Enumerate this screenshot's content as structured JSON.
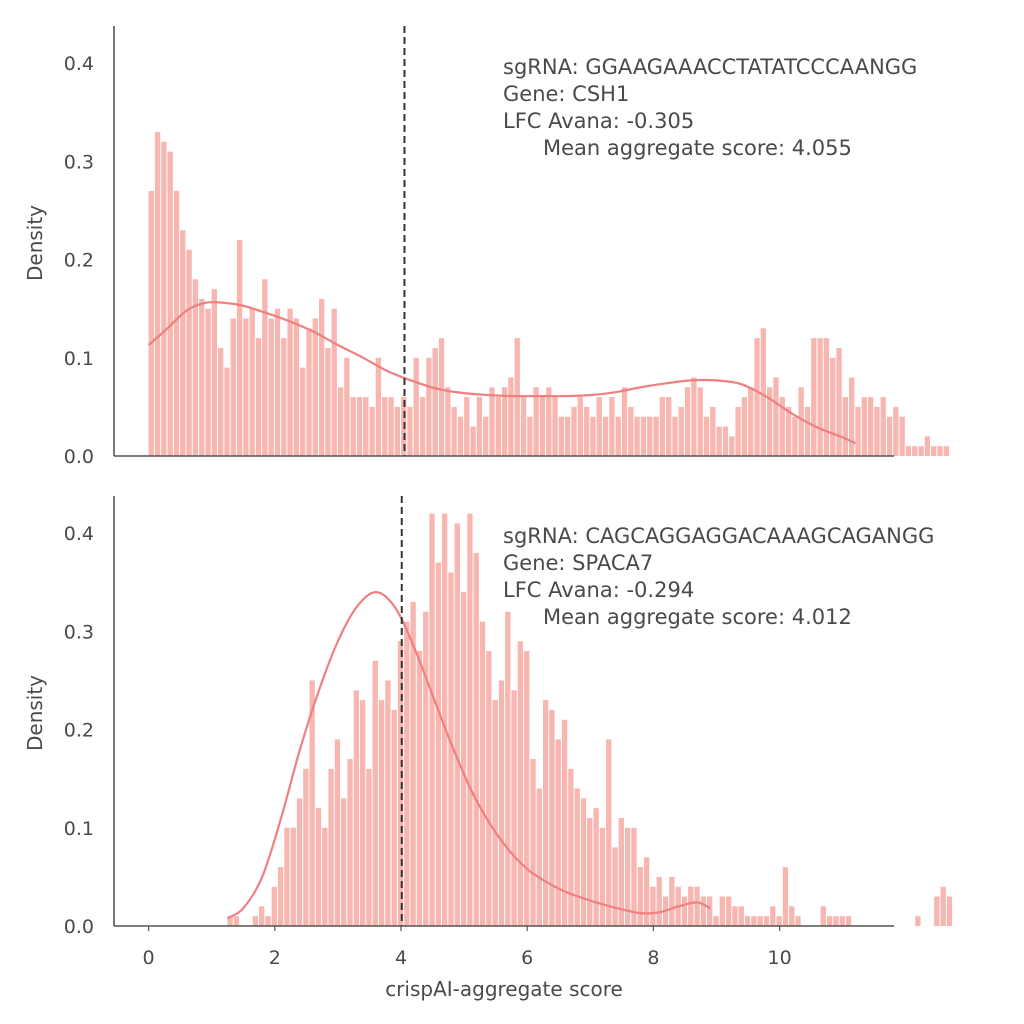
{
  "chart_data": [
    {
      "type": "histogram",
      "title": "",
      "xlabel": "",
      "ylabel": "Density",
      "xlim": [
        -0.5,
        11.8
      ],
      "ylim": [
        0,
        0.44
      ],
      "yticks": [
        "0.0",
        "0.1",
        "0.2",
        "0.3",
        "0.4"
      ],
      "xticks": [],
      "vline_x": 4.055,
      "annotation": {
        "sgrna": "sgRNA: GGAAGAAACCTATATCCCAANGG",
        "gene": "Gene: CSH1",
        "lfc": "LFC Avana: -0.305",
        "mean": "Mean aggregate score: 4.055"
      },
      "bins": {
        "start": 0.0,
        "width": 0.1,
        "values": [
          0.27,
          0.33,
          0.32,
          0.31,
          0.27,
          0.23,
          0.21,
          0.18,
          0.16,
          0.15,
          0.17,
          0.11,
          0.09,
          0.14,
          0.22,
          0.14,
          0.15,
          0.12,
          0.18,
          0.14,
          0.15,
          0.12,
          0.15,
          0.14,
          0.09,
          0.13,
          0.14,
          0.16,
          0.11,
          0.15,
          0.07,
          0.1,
          0.06,
          0.06,
          0.06,
          0.05,
          0.1,
          0.06,
          0.06,
          0.05,
          0.06,
          0.05,
          0.1,
          0.06,
          0.1,
          0.11,
          0.12,
          0.07,
          0.05,
          0.04,
          0.06,
          0.03,
          0.06,
          0.04,
          0.07,
          0.06,
          0.07,
          0.08,
          0.12,
          0.06,
          0.04,
          0.07,
          0.06,
          0.07,
          0.06,
          0.04,
          0.04,
          0.05,
          0.06,
          0.05,
          0.04,
          0.06,
          0.04,
          0.06,
          0.04,
          0.07,
          0.05,
          0.04,
          0.04,
          0.04,
          0.04,
          0.06,
          0.06,
          0.04,
          0.05,
          0.07,
          0.08,
          0.07,
          0.04,
          0.05,
          0.03,
          0.03,
          0.02,
          0.05,
          0.06,
          0.07,
          0.12,
          0.13,
          0.07,
          0.08,
          0.06,
          0.05,
          0.04,
          0.07,
          0.05,
          0.12,
          0.12,
          0.12,
          0.1,
          0.11,
          0.06,
          0.08,
          0.05,
          0.06,
          0.06,
          0.05,
          0.06,
          0.04,
          0.05,
          0.04,
          0.01,
          0.01,
          0.01,
          0.02,
          0.01,
          0.01,
          0.01
        ]
      },
      "kde": [
        [
          0.0,
          0.113
        ],
        [
          0.3,
          0.13
        ],
        [
          0.6,
          0.148
        ],
        [
          0.9,
          0.156
        ],
        [
          1.2,
          0.156
        ],
        [
          1.5,
          0.153
        ],
        [
          1.8,
          0.147
        ],
        [
          2.2,
          0.138
        ],
        [
          2.6,
          0.127
        ],
        [
          3.0,
          0.113
        ],
        [
          3.4,
          0.1
        ],
        [
          3.8,
          0.086
        ],
        [
          4.2,
          0.076
        ],
        [
          4.6,
          0.068
        ],
        [
          5.0,
          0.064
        ],
        [
          5.4,
          0.062
        ],
        [
          5.8,
          0.061
        ],
        [
          6.2,
          0.061
        ],
        [
          6.6,
          0.061
        ],
        [
          7.0,
          0.062
        ],
        [
          7.4,
          0.065
        ],
        [
          7.8,
          0.07
        ],
        [
          8.2,
          0.074
        ],
        [
          8.6,
          0.077
        ],
        [
          9.0,
          0.077
        ],
        [
          9.4,
          0.073
        ],
        [
          9.8,
          0.06
        ],
        [
          10.2,
          0.043
        ],
        [
          10.6,
          0.029
        ],
        [
          11.0,
          0.019
        ],
        [
          11.2,
          0.013
        ]
      ]
    },
    {
      "type": "histogram",
      "title": "",
      "xlabel": "crispAI-aggregate score",
      "ylabel": "Density",
      "xlim": [
        -0.5,
        11.8
      ],
      "ylim": [
        0,
        0.44
      ],
      "yticks": [
        "0.0",
        "0.1",
        "0.2",
        "0.3",
        "0.4"
      ],
      "xticks": [
        0,
        2,
        4,
        6,
        8,
        10
      ],
      "vline_x": 4.012,
      "annotation": {
        "sgrna": "sgRNA: CAGCAGGAGGACAAAGCAGANGG",
        "gene": "Gene: SPACA7",
        "lfc": "LFC Avana: -0.294",
        "mean": "Mean aggregate score: 4.012"
      },
      "bins": {
        "start": 1.25,
        "width": 0.1,
        "values": [
          0.01,
          0.01,
          0.0,
          0.0,
          0.01,
          0.02,
          0.01,
          0.04,
          0.06,
          0.1,
          0.1,
          0.13,
          0.16,
          0.25,
          0.12,
          0.1,
          0.16,
          0.19,
          0.13,
          0.17,
          0.24,
          0.23,
          0.16,
          0.27,
          0.23,
          0.25,
          0.22,
          0.29,
          0.31,
          0.33,
          0.28,
          0.32,
          0.42,
          0.37,
          0.42,
          0.36,
          0.41,
          0.34,
          0.42,
          0.38,
          0.31,
          0.28,
          0.23,
          0.25,
          0.32,
          0.24,
          0.29,
          0.28,
          0.17,
          0.14,
          0.23,
          0.22,
          0.19,
          0.21,
          0.16,
          0.14,
          0.13,
          0.11,
          0.12,
          0.1,
          0.19,
          0.08,
          0.11,
          0.1,
          0.1,
          0.06,
          0.07,
          0.04,
          0.05,
          0.03,
          0.05,
          0.04,
          0.03,
          0.04,
          0.04,
          0.03,
          0.03,
          0.01,
          0.03,
          0.03,
          0.02,
          0.02,
          0.01,
          0.01,
          0.01,
          0.01,
          0.02,
          0.01,
          0.06,
          0.02,
          0.01,
          0.0,
          0.0,
          0.0,
          0.02,
          0.01,
          0.01,
          0.01,
          0.01,
          0.0,
          0.0,
          0.0,
          0.0,
          0.0,
          0.0,
          0.0,
          0.0,
          0.0,
          0.0,
          0.01,
          0.0,
          0.0,
          0.03,
          0.04,
          0.03
        ]
      },
      "kde": [
        [
          1.25,
          0.008
        ],
        [
          1.5,
          0.018
        ],
        [
          1.8,
          0.05
        ],
        [
          2.1,
          0.11
        ],
        [
          2.4,
          0.18
        ],
        [
          2.7,
          0.24
        ],
        [
          3.0,
          0.29
        ],
        [
          3.3,
          0.325
        ],
        [
          3.6,
          0.34
        ],
        [
          3.9,
          0.325
        ],
        [
          4.2,
          0.285
        ],
        [
          4.5,
          0.235
        ],
        [
          4.8,
          0.185
        ],
        [
          5.1,
          0.14
        ],
        [
          5.4,
          0.105
        ],
        [
          5.7,
          0.078
        ],
        [
          6.0,
          0.058
        ],
        [
          6.3,
          0.045
        ],
        [
          6.6,
          0.035
        ],
        [
          6.9,
          0.028
        ],
        [
          7.2,
          0.022
        ],
        [
          7.5,
          0.017
        ],
        [
          7.8,
          0.013
        ],
        [
          8.1,
          0.014
        ],
        [
          8.4,
          0.02
        ],
        [
          8.7,
          0.024
        ],
        [
          8.9,
          0.018
        ]
      ]
    }
  ]
}
